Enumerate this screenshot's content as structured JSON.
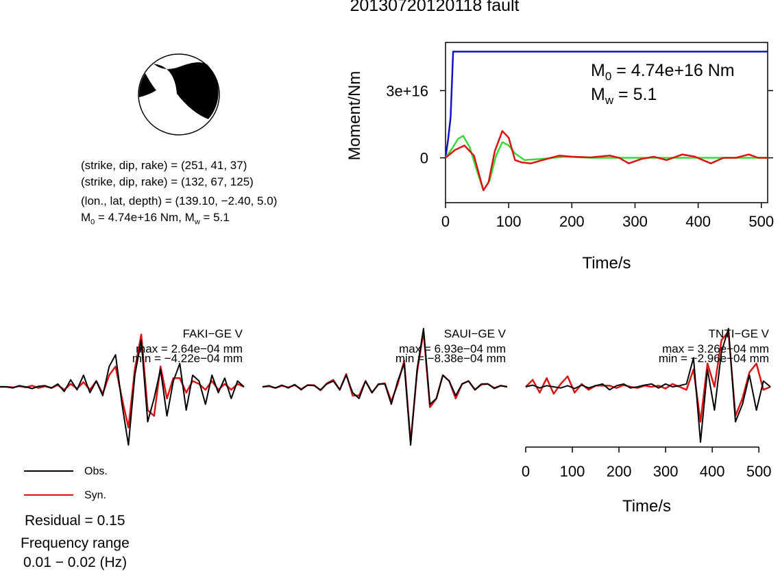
{
  "title": "20130720120118 fault",
  "beachball": {
    "fill": "#000000"
  },
  "info": {
    "line1": "(strike, dip, rake) = (251, 41, 37)",
    "line2": "(strike, dip, rake) = (132, 67, 125)",
    "line3": "(lon., lat, depth) = (139.10, −2.40, 5.0)",
    "line4_m": "M",
    "line4_sub": "0",
    "line4_rest": " = 4.74e+16 Nm, M",
    "line4_sub2": "w",
    "line4_end": " = 5.1"
  },
  "legend": {
    "obs_label": "Obs.",
    "syn_label": "Syn.",
    "residual": "Residual = 0.15",
    "freq_title": "Frequency range",
    "freq_value": "0.01 − 0.02 (Hz)"
  },
  "colors": {
    "obs": "#000000",
    "syn": "#dd1111",
    "moment": "#1111cc",
    "stf": "#33dd33"
  },
  "chart_data": [
    {
      "type": "line",
      "xlabel": "Time/s",
      "ylabel": "Moment/Nm",
      "xlim": [
        0,
        510
      ],
      "xticks": [
        0,
        100,
        200,
        300,
        400,
        500
      ],
      "yticks": [
        {
          "v": 0,
          "label": "0"
        },
        {
          "v": 3e+16,
          "label": "3e+16"
        }
      ],
      "annotation": {
        "m0_prefix": "M",
        "m0_sub": "0",
        "m0_text": " = 4.74e+16 Nm",
        "mw_prefix": "M",
        "mw_sub": "w",
        "mw_text": " = 5.1"
      },
      "series": [
        {
          "key": "moment",
          "x": [
            0,
            4,
            8,
            10,
            12,
            510
          ],
          "y": [
            0,
            8000000000000000.0,
            1.8e+16,
            3.2e+16,
            4.74e+16,
            4.74e+16
          ]
        },
        {
          "key": "stf",
          "x": [
            0,
            10,
            20,
            28,
            38,
            50,
            60,
            70,
            80,
            90,
            100,
            110,
            125,
            150,
            190,
            230,
            510
          ],
          "y": [
            0,
            4000000000000000.0,
            8500000000000000.0,
            9800000000000000.0,
            5000000000000000.0,
            -6000000000000000.0,
            -1.45e+16,
            -1e+16,
            1000000000000000.0,
            7000000000000000.0,
            5500000000000000.0,
            2000000000000000.0,
            -1000000000000000.0,
            -500000000000000.0,
            500000000000000.0,
            0,
            0
          ]
        },
        {
          "key": "syn",
          "x": [
            0,
            15,
            30,
            45,
            60,
            68,
            78,
            90,
            100,
            110,
            120,
            135,
            160,
            180,
            200,
            230,
            260,
            275,
            290,
            310,
            330,
            350,
            375,
            395,
            420,
            440,
            460,
            480,
            495,
            510
          ],
          "y": [
            0,
            3500000000000000.0,
            5500000000000000.0,
            1000000000000000.0,
            -1.45e+16,
            -1.1e+16,
            3000000000000000.0,
            1.2e+16,
            9000000000000000.0,
            -1000000000000000.0,
            -2000000000000000.0,
            -2500000000000000.0,
            -500000000000000.0,
            1000000000000000.0,
            500000000000000.0,
            200000000000000.0,
            1000000000000000.0,
            0,
            -2500000000000000.0,
            -500000000000000.0,
            500000000000000.0,
            -1000000000000000.0,
            1500000000000000.0,
            500000000000000.0,
            -2500000000000000.0,
            0,
            0,
            1500000000000000.0,
            0,
            0
          ]
        }
      ]
    },
    {
      "type": "line",
      "station": "FAKI−GE V",
      "max_label": "max = 2.64e−04 mm",
      "min_label": "min = −4.22e−04 mm",
      "series": [
        {
          "key": "obs",
          "y": [
            0,
            0,
            -0.02,
            0.02,
            0,
            -0.03,
            0.01,
            0.02,
            -0.02,
            0.05,
            -0.08,
            0.12,
            -0.05,
            0.2,
            -0.1,
            0.1,
            -0.15,
            0.35,
            0.55,
            -0.3,
            -1.0,
            0.2,
            0.8,
            -0.6,
            -0.2,
            0.3,
            -0.5,
            0.1,
            0.4,
            -0.4,
            0.2,
            0.1,
            -0.3,
            0.2,
            -0.1,
            0.15,
            -0.2,
            0.1,
            0
          ]
        },
        {
          "key": "syn",
          "y": [
            0,
            0,
            -0.01,
            0.01,
            -0.01,
            0.02,
            -0.02,
            0.01,
            -0.02,
            0.03,
            -0.05,
            0.05,
            -0.03,
            0.08,
            -0.05,
            0.1,
            -0.12,
            0.2,
            0.35,
            -0.2,
            -0.7,
            0.3,
            0.9,
            -0.4,
            -0.5,
            0.35,
            -0.2,
            0.15,
            0.15,
            -0.1,
            0.1,
            0.05,
            -0.05,
            0.1,
            -0.05,
            0.05,
            -0.05,
            0.05,
            0
          ]
        }
      ]
    },
    {
      "type": "line",
      "station": "SAUI−GE V",
      "max_label": "max = 6.93e−04 mm",
      "min_label": "min = −8.38e−04 mm",
      "series": [
        {
          "key": "obs",
          "y": [
            0,
            0.02,
            -0.02,
            0.03,
            -0.02,
            0.04,
            -0.05,
            0.03,
            0.02,
            -0.05,
            0.05,
            0.1,
            -0.05,
            0.2,
            -0.1,
            -0.2,
            0.1,
            -0.1,
            0.05,
            0.05,
            -0.3,
            0.1,
            0.4,
            -1.0,
            0.3,
            1.0,
            -0.3,
            -0.2,
            0.2,
            0.1,
            -0.15,
            0.05,
            0.1,
            -0.05,
            0.05,
            0.05,
            -0.03,
            0.02,
            0
          ]
        },
        {
          "key": "syn",
          "y": [
            0,
            0.01,
            -0.02,
            0.02,
            -0.01,
            0.03,
            -0.04,
            0.03,
            0.03,
            -0.06,
            0.06,
            0.12,
            -0.05,
            0.22,
            -0.15,
            -0.15,
            0.1,
            -0.1,
            0.04,
            0.06,
            -0.25,
            0.05,
            0.45,
            -0.95,
            0.25,
            0.95,
            -0.35,
            -0.2,
            0.2,
            0.1,
            -0.2,
            0.05,
            0.1,
            -0.05,
            0.04,
            0.05,
            -0.02,
            0.02,
            0
          ]
        }
      ]
    },
    {
      "type": "line",
      "station": "TNTI−GE V",
      "max_label": "max = 3.26e−04 mm",
      "min_label": "min = −2.96e−04 mm",
      "xlabel": "Time/s",
      "xlim": [
        0,
        510
      ],
      "xticks": [
        0,
        100,
        200,
        300,
        400,
        500
      ],
      "series": [
        {
          "key": "obs",
          "y": [
            0,
            0.03,
            -0.02,
            0.02,
            0.0,
            -0.02,
            0.02,
            -0.03,
            0.03,
            -0.02,
            0.02,
            0.05,
            -0.05,
            0.02,
            0.05,
            -0.02,
            0.0,
            0.03,
            0.05,
            -0.02,
            0.05,
            0.0,
            0.02,
            0.05,
            0.5,
            -0.95,
            0.3,
            -0.4,
            0.6,
            1.0,
            -0.6,
            -0.3,
            0.2,
            -0.4,
            0.1,
            0
          ]
        },
        {
          "key": "syn",
          "y": [
            0,
            0.12,
            -0.1,
            0.15,
            -0.12,
            0.05,
            0.18,
            -0.1,
            0.05,
            -0.05,
            0.02,
            0.02,
            0.02,
            -0.02,
            0.03,
            0.0,
            -0.02,
            0.02,
            0.0,
            0.02,
            -0.03,
            0.05,
            0.0,
            -0.05,
            0.3,
            -0.6,
            0.4,
            0.0,
            0.8,
            0.95,
            -0.5,
            -0.2,
            0.25,
            0.4,
            -0.05,
            0
          ]
        }
      ]
    }
  ]
}
